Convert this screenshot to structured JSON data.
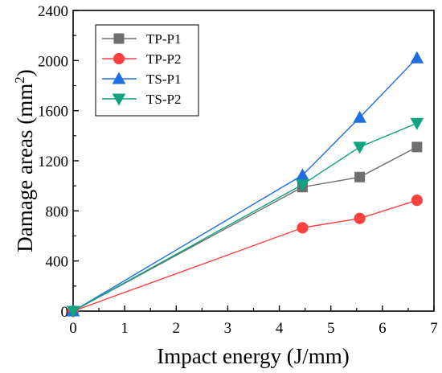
{
  "chart_data": {
    "type": "line",
    "title": "",
    "xlabel": "Impact energy (J/mm)",
    "ylabel_main": "Damage areas (mm",
    "ylabel_sup": "2",
    "ylabel_close": ")",
    "xlim": [
      0,
      7
    ],
    "ylim": [
      0,
      2400
    ],
    "xticks": [
      "0",
      "1",
      "2",
      "3",
      "4",
      "5",
      "6",
      "7"
    ],
    "yticks": [
      "0",
      "400",
      "800",
      "1200",
      "1600",
      "2000",
      "2400"
    ],
    "grid": false,
    "legend_position": "top-left",
    "series": [
      {
        "name": "TP-P1",
        "color": "#6e6e6e",
        "marker": "square",
        "x": [
          0,
          4.45,
          5.56,
          6.67
        ],
        "y": [
          0,
          990,
          1070,
          1310
        ]
      },
      {
        "name": "TP-P2",
        "color": "#ff4040",
        "marker": "circle",
        "x": [
          0,
          4.45,
          5.56,
          6.67
        ],
        "y": [
          0,
          665,
          740,
          885
        ]
      },
      {
        "name": "TS-P1",
        "color": "#1f6fe0",
        "marker": "triangle-up",
        "x": [
          0,
          4.45,
          5.56,
          6.67
        ],
        "y": [
          0,
          1085,
          1545,
          2020
        ]
      },
      {
        "name": "TS-P2",
        "color": "#11a37f",
        "marker": "triangle-down",
        "x": [
          0,
          4.45,
          5.56,
          6.67
        ],
        "y": [
          0,
          1010,
          1310,
          1500
        ]
      }
    ]
  }
}
